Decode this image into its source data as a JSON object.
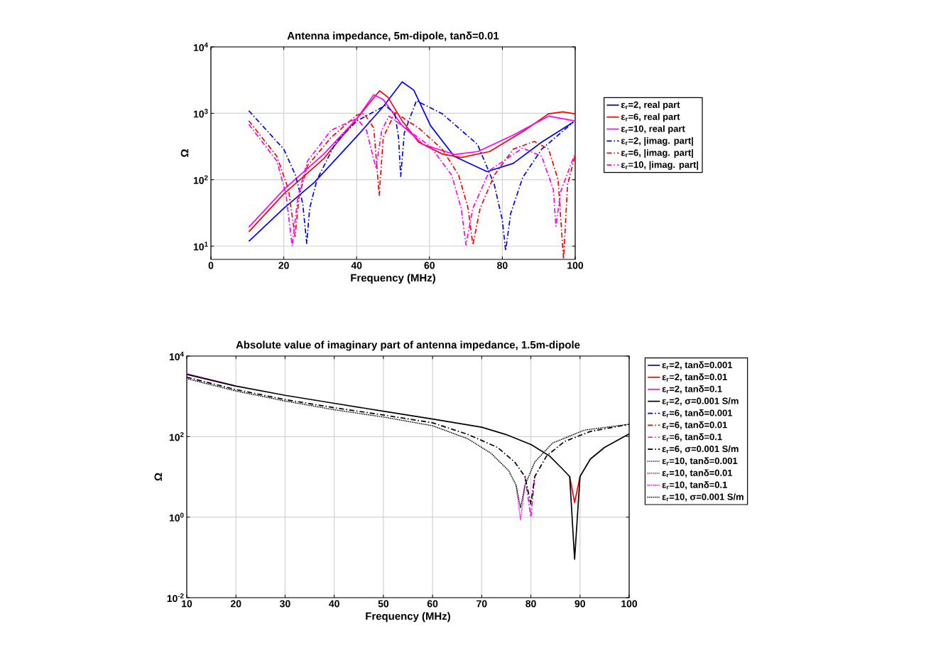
{
  "chart_data": [
    {
      "type": "line",
      "title": "Antenna impedance, 5m-dipole, tanδ=0.01",
      "xlabel": "Frequency (MHz)",
      "ylabel": "Ω",
      "log": "y",
      "grid": true,
      "legend": "right",
      "xlim": [
        0,
        100
      ],
      "xticks": [
        0,
        20,
        40,
        60,
        80,
        100
      ],
      "ylim": [
        6.3,
        10000
      ],
      "yticks": [
        {
          "value": 10,
          "label": "10$^{1}$"
        },
        {
          "value": 100,
          "label": "10$^{2}$"
        },
        {
          "value": 1000,
          "label": "10$^{3}$"
        },
        {
          "value": 10000,
          "label": "10$^{4}$"
        }
      ],
      "series": [
        {
          "name": "ε$_{r}$=2, real part",
          "color": "#0000ff",
          "line_style": "solid",
          "x": [
            10.4,
            20,
            28.4,
            40.1,
            47.3,
            52.5,
            55.7,
            60.3,
            66.8,
            75.8,
            83,
            90.8,
            99.5
          ],
          "values": [
            11.8,
            37,
            91,
            452,
            1260,
            2970,
            2230,
            650,
            225,
            132,
            176,
            368,
            738
          ]
        },
        {
          "name": "ε$_{r}$=6, real part",
          "color": "#ff0000",
          "line_style": "solid",
          "x": [
            10.4,
            20,
            31,
            40.1,
            46.3,
            48.6,
            52.5,
            57,
            63.5,
            68.7,
            76.5,
            86.2,
            92.7,
            96.6,
            99.9
          ],
          "values": [
            16.4,
            61,
            208,
            835,
            2180,
            1745,
            769,
            368,
            244,
            216,
            265,
            555,
            984,
            1050,
            984
          ]
        },
        {
          "name": "ε$_{r}$=10, real part",
          "color": "#ff00ff",
          "line_style": "solid",
          "x": [
            10.4,
            20,
            31,
            40.1,
            44.7,
            47.3,
            52.5,
            58.3,
            66.8,
            73.3,
            83,
            92.7,
            99.9
          ],
          "values": [
            19.3,
            71,
            244,
            835,
            1900,
            1610,
            653,
            339,
            240,
            265,
            471,
            906,
            769
          ]
        },
        {
          "name": "ε$_{r}$=2, |imag. part|",
          "color": "#0000ff",
          "line_style": "dashdot",
          "x": [
            10.4,
            20,
            23.2,
            25.2,
            26.3,
            27.1,
            29.1,
            34.3,
            40.1,
            47.9,
            50.5,
            51.5,
            52.1,
            53.1,
            56.4,
            63.5,
            73.2,
            77.8,
            80,
            80.9,
            82.3,
            85.6,
            90.8,
            99.5
          ],
          "values": [
            1094,
            288,
            117,
            44,
            10.9,
            37,
            99,
            368,
            769,
            1310,
            984,
            433,
            112,
            510,
            1545,
            984,
            339,
            84,
            24.5,
            8.5,
            31,
            108,
            288,
            738
          ]
        },
        {
          "name": "ε$_{r}$=6, |imag. part|",
          "color": "#ff0000",
          "line_style": "dashdot",
          "x": [
            10.4,
            18.1,
            21.3,
            23.1,
            24.2,
            26.5,
            33,
            40.1,
            42.1,
            44.7,
            46.2,
            47.3,
            50.5,
            57,
            63.5,
            68,
            70.6,
            71.9,
            73.9,
            77.8,
            83,
            88.8,
            92.7,
            95.3,
            96.8,
            97.9,
            99.9
          ],
          "values": [
            769,
            225,
            71,
            13.9,
            56,
            162,
            433,
            944,
            984,
            601,
            58,
            433,
            1024,
            601,
            288,
            117,
            37,
            10.4,
            37,
            117,
            288,
            377,
            288,
            99,
            6.4,
            84,
            225
          ]
        },
        {
          "name": "ε$_{r}$=10, |imag. part|",
          "color": "#ff00ff",
          "line_style": "dashdot",
          "x": [
            10.4,
            18.1,
            20.6,
            22.3,
            23.9,
            26.5,
            33,
            40.1,
            42.7,
            45.3,
            46.9,
            48.9,
            52.5,
            60.3,
            66.1,
            68.7,
            70,
            71.9,
            76.5,
            85.6,
            90.8,
            94,
            94.7,
            96,
            99.9
          ],
          "values": [
            681,
            191,
            61,
            10,
            56,
            191,
            555,
            835,
            555,
            149,
            555,
            906,
            653,
            313,
            117,
            37,
            10.4,
            37,
            138,
            300,
            225,
            71,
            20,
            66,
            244
          ]
        }
      ]
    },
    {
      "type": "line",
      "title": "Absolute value of imaginary part of antenna impedance, 1.5m-dipole",
      "xlabel": "Frequency (MHz)",
      "ylabel": "Ω",
      "log": "y",
      "grid": true,
      "legend": "right",
      "xlim": [
        10,
        100
      ],
      "xticks": [
        10,
        20,
        30,
        40,
        50,
        60,
        70,
        80,
        90,
        100
      ],
      "ylim": [
        0.01,
        10000
      ],
      "yticks": [
        {
          "value": 0.01,
          "label": "10$^{-2}$"
        },
        {
          "value": 1,
          "label": "10$^{0}$"
        },
        {
          "value": 100,
          "label": "10$^{2}$"
        },
        {
          "value": 10000,
          "label": "10$^{4}$"
        }
      ],
      "series": [
        {
          "name": "ε$_{r}$=2, tanδ=0.001",
          "color": "#0000ff",
          "line_style": "solid"
        },
        {
          "name": "ε$_{r}$=2, tanδ=0.01",
          "color": "#ff0000",
          "line_style": "solid",
          "x": [
            87.9,
            88.9,
            90
          ],
          "values": [
            10.2,
            2.3,
            10.2
          ]
        },
        {
          "name": "ε$_{r}$=2, tanδ=0.1",
          "color": "#ff00ff",
          "line_style": "solid",
          "x": [
            10,
            19.9
          ],
          "values": [
            3600,
            1810
          ]
        },
        {
          "name": "ε$_{r}$=2, σ=0.001 S/m",
          "color": "#000000",
          "line_style": "solid",
          "x": [
            10,
            19.9,
            30,
            40,
            50,
            60,
            70,
            74.9,
            80.1,
            83.8,
            86.2,
            87.9,
            88.9,
            90,
            92.1,
            95,
            100
          ],
          "values": [
            3500,
            1810,
            1060,
            670,
            427,
            273,
            171,
            113,
            63,
            33,
            16.8,
            10.2,
            0.09,
            10.2,
            27.6,
            54,
            117
          ]
        },
        {
          "name": "ε$_{r}$=6, tanδ=0.001",
          "color": "#0000ff",
          "line_style": "dashdot"
        },
        {
          "name": "ε$_{r}$=6, tanδ=0.01",
          "color": "#ff0000",
          "line_style": "dashdot"
        },
        {
          "name": "ε$_{r}$=6, tanδ=0.1",
          "color": "#ff00ff",
          "line_style": "dashdot",
          "x": [
            78.8,
            80,
            80.8
          ],
          "values": [
            10.2,
            1.0,
            10.2
          ]
        },
        {
          "name": "ε$_{r}$=6, σ=0.001 S/m",
          "color": "#000000",
          "line_style": "dashdot",
          "x": [
            10,
            19.9,
            30,
            40,
            50,
            60,
            67.2,
            73.2,
            76.7,
            78.8,
            80,
            80.8,
            83.2,
            86.8,
            92.1,
            100
          ],
          "values": [
            2980,
            1480,
            830,
            521,
            344,
            220,
            113,
            54,
            23.4,
            10.2,
            2.1,
            10.2,
            33,
            75,
            134,
            202
          ]
        },
        {
          "name": "ε$_{r}$=10, tanδ=0.001",
          "color": "#0000ff",
          "line_style": "dotted"
        },
        {
          "name": "ε$_{r}$=10, tanδ=0.01",
          "color": "#ff0000",
          "line_style": "dotted"
        },
        {
          "name": "ε$_{r}$=10, tanδ=0.1",
          "color": "#ff00ff",
          "line_style": "dotted",
          "x": [
            77,
            77.9,
            78.8
          ],
          "values": [
            6.2,
            0.85,
            6.2
          ]
        },
        {
          "name": "ε$_{r}$=10, σ=0.001 S/m",
          "color": "#000000",
          "line_style": "dotted",
          "x": [
            10,
            19.9,
            30,
            40,
            50,
            60,
            67.2,
            71.9,
            75.5,
            77,
            77.9,
            78.8,
            80.8,
            84.4,
            90.9,
            100
          ],
          "values": [
            2740,
            1365,
            764,
            464,
            306,
            186,
            88,
            38.5,
            14.2,
            6.2,
            1.7,
            6.2,
            23.4,
            69,
            145,
            202
          ]
        }
      ]
    }
  ]
}
